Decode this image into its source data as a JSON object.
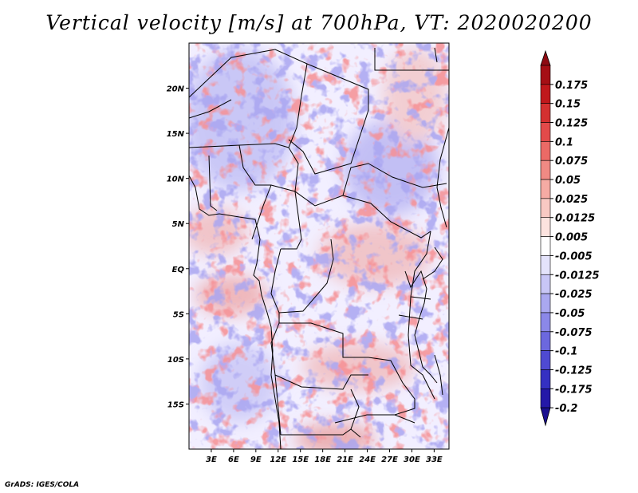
{
  "title": "Vertical velocity [m/s] at 700hPa, VT: 2020020200",
  "credit": "GrADS: IGES/COLA",
  "map": {
    "lat_range": [
      -20,
      25
    ],
    "lon_range": [
      0,
      35
    ],
    "lat_ticks": [
      {
        "value": 20,
        "label": "20N"
      },
      {
        "value": 15,
        "label": "15N"
      },
      {
        "value": 10,
        "label": "10N"
      },
      {
        "value": 5,
        "label": "5N"
      },
      {
        "value": 0,
        "label": "EQ"
      },
      {
        "value": -5,
        "label": "5S"
      },
      {
        "value": -10,
        "label": "10S"
      },
      {
        "value": -15,
        "label": "15S"
      }
    ],
    "lon_ticks": [
      {
        "value": 3,
        "label": "3E"
      },
      {
        "value": 6,
        "label": "6E"
      },
      {
        "value": 9,
        "label": "9E"
      },
      {
        "value": 12,
        "label": "12E"
      },
      {
        "value": 15,
        "label": "15E"
      },
      {
        "value": 18,
        "label": "18E"
      },
      {
        "value": 21,
        "label": "21E"
      },
      {
        "value": 24,
        "label": "24E"
      },
      {
        "value": 27,
        "label": "27E"
      },
      {
        "value": 30,
        "label": "30E"
      },
      {
        "value": 33,
        "label": "33E"
      }
    ]
  },
  "colorbar": {
    "levels": [
      {
        "label": "0.175",
        "color": "#a50f15"
      },
      {
        "label": "0.15",
        "color": "#c0181c"
      },
      {
        "label": "0.125",
        "color": "#d43030"
      },
      {
        "label": "0.1",
        "color": "#e34a4a"
      },
      {
        "label": "0.075",
        "color": "#eb6a66"
      },
      {
        "label": "0.05",
        "color": "#f08a84"
      },
      {
        "label": "0.025",
        "color": "#f5aba4"
      },
      {
        "label": "0.0125",
        "color": "#f9c9c3"
      },
      {
        "label": "0.005",
        "color": "#fce3df"
      },
      {
        "label": "-0.005",
        "color": "#ffffff"
      },
      {
        "label": "-0.0125",
        "color": "#e4e3fb"
      },
      {
        "label": "-0.025",
        "color": "#c8c6f6"
      },
      {
        "label": "-0.05",
        "color": "#aaa8f0"
      },
      {
        "label": "-0.075",
        "color": "#8b88e8"
      },
      {
        "label": "-0.1",
        "color": "#6c68de"
      },
      {
        "label": "-0.125",
        "color": "#4f4ad2"
      },
      {
        "label": "-0.175",
        "color": "#3530c2"
      },
      {
        "label": "-0.2",
        "color": "#2418a8"
      }
    ],
    "top_color": "#8e0b12",
    "bottom_color": "#1a0f90"
  },
  "colors": {
    "border": "#000000",
    "positive": "#e05050",
    "negative": "#6a66de"
  }
}
